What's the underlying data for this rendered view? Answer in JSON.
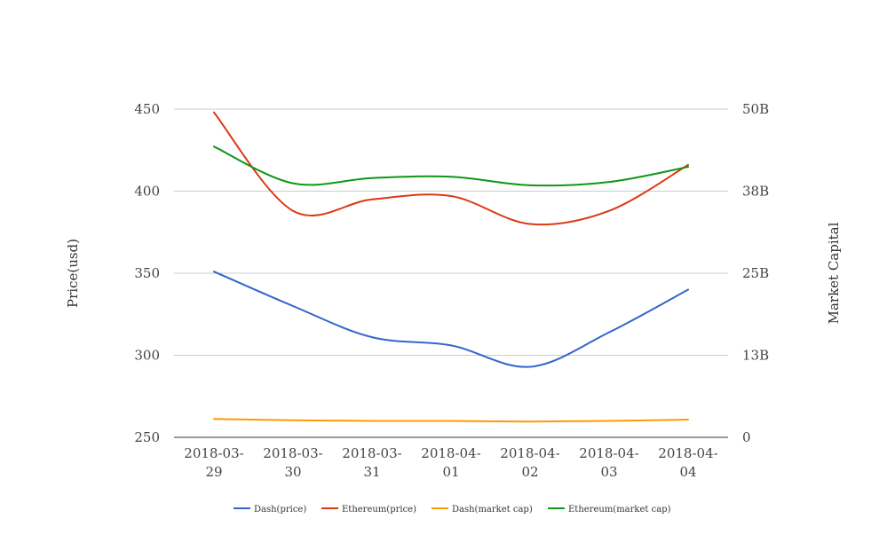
{
  "chart_data": {
    "type": "line",
    "title": "",
    "categories": [
      "2018-03-29",
      "2018-03-30",
      "2018-03-31",
      "2018-04-01",
      "2018-04-02",
      "2018-04-03",
      "2018-04-04"
    ],
    "category_label_lines": [
      [
        "2018-03-",
        "29"
      ],
      [
        "2018-03-",
        "30"
      ],
      [
        "2018-03-",
        "31"
      ],
      [
        "2018-04-",
        "01"
      ],
      [
        "2018-04-",
        "02"
      ],
      [
        "2018-04-",
        "03"
      ],
      [
        "2018-04-",
        "04"
      ]
    ],
    "y_left": {
      "label": "Price(usd)",
      "ylim": [
        250,
        450
      ],
      "ticks": [
        250,
        300,
        350,
        400,
        450
      ],
      "tick_labels": [
        "250",
        "300",
        "350",
        "400",
        "450"
      ]
    },
    "y_right": {
      "label": "Market Capital",
      "ylim": [
        0,
        50000000000
      ],
      "ticks": [
        0,
        12500000000,
        25000000000,
        37500000000,
        50000000000
      ],
      "tick_labels": [
        "0",
        "13B",
        "25B",
        "38B",
        "50B"
      ]
    },
    "grid": true,
    "legend_position": "bottom",
    "series": [
      {
        "name": "Dash(price)",
        "axis": "left",
        "color": "#3366cc",
        "values": [
          351,
          330,
          311,
          306,
          293,
          314,
          340
        ]
      },
      {
        "name": "Ethereum(price)",
        "axis": "left",
        "color": "#dc3912",
        "values": [
          448,
          388,
          395,
          397,
          380,
          388,
          416
        ]
      },
      {
        "name": "Dash(market cap)",
        "axis": "right",
        "color": "#ff9900",
        "values": [
          2800000000,
          2600000000,
          2500000000,
          2500000000,
          2400000000,
          2500000000,
          2700000000
        ]
      },
      {
        "name": "Ethereum(market cap)",
        "axis": "right",
        "color": "#109618",
        "values": [
          44300000000,
          38700000000,
          39500000000,
          39700000000,
          38400000000,
          38900000000,
          41200000000
        ]
      }
    ]
  }
}
